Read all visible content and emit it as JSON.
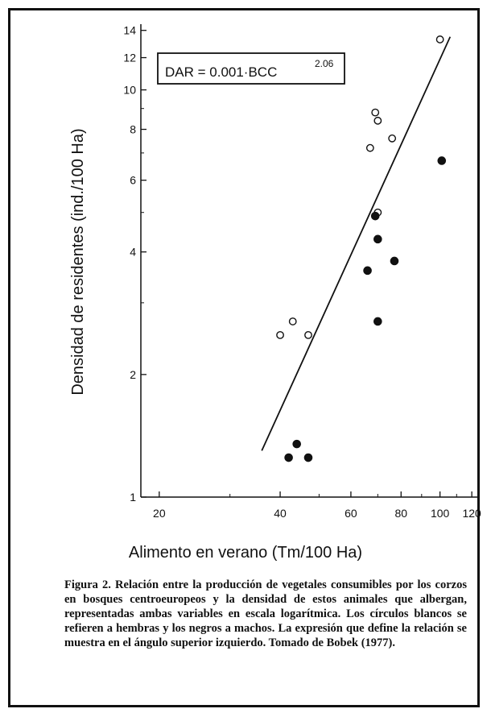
{
  "chart_data": {
    "type": "scatter",
    "scale": "log-log",
    "ylabel": "Densidad de residentes (ind./100 Ha)",
    "xlabel": "Alimento en verano (Tm/100 Ha)",
    "xlim": [
      18,
      125
    ],
    "ylim": [
      1,
      14.5
    ],
    "x_ticks": [
      20,
      40,
      60,
      80,
      100,
      120
    ],
    "y_ticks": [
      1,
      2,
      4,
      6,
      8,
      10,
      12,
      14
    ],
    "equation": {
      "base": "DAR = 0.001·BCC",
      "exponent": "2.06"
    },
    "series": [
      {
        "marker": "open-circle",
        "points": [
          {
            "x": 40,
            "y": 2.5
          },
          {
            "x": 43,
            "y": 2.7
          },
          {
            "x": 47,
            "y": 2.5
          },
          {
            "x": 67,
            "y": 7.2
          },
          {
            "x": 69,
            "y": 8.8
          },
          {
            "x": 70,
            "y": 8.4
          },
          {
            "x": 76,
            "y": 7.6
          },
          {
            "x": 70,
            "y": 5.0
          },
          {
            "x": 100,
            "y": 13.3
          }
        ]
      },
      {
        "marker": "filled-circle",
        "points": [
          {
            "x": 42,
            "y": 1.25
          },
          {
            "x": 44,
            "y": 1.35
          },
          {
            "x": 47,
            "y": 1.25
          },
          {
            "x": 66,
            "y": 3.6
          },
          {
            "x": 69,
            "y": 4.9
          },
          {
            "x": 70,
            "y": 4.3
          },
          {
            "x": 70,
            "y": 2.7
          },
          {
            "x": 77,
            "y": 3.8
          },
          {
            "x": 101,
            "y": 6.7
          }
        ]
      }
    ],
    "regression_line": {
      "from": {
        "x": 36,
        "y": 1.3
      },
      "to": {
        "x": 106,
        "y": 13.5
      }
    }
  },
  "caption": "Figura 2. Relación entre la producción de vegetales consumibles por los corzos en bosques centroeuropeos y la densidad de estos animales que albergan, representadas ambas variables en escala logarítmica. Los círculos blancos se refieren a hembras y los negros a machos. La expresión que define la relación se muestra en el ángulo superior izquierdo. Tomado de Bobek (1977).",
  "colors": {
    "ink": "#111111",
    "background": "#ffffff"
  }
}
